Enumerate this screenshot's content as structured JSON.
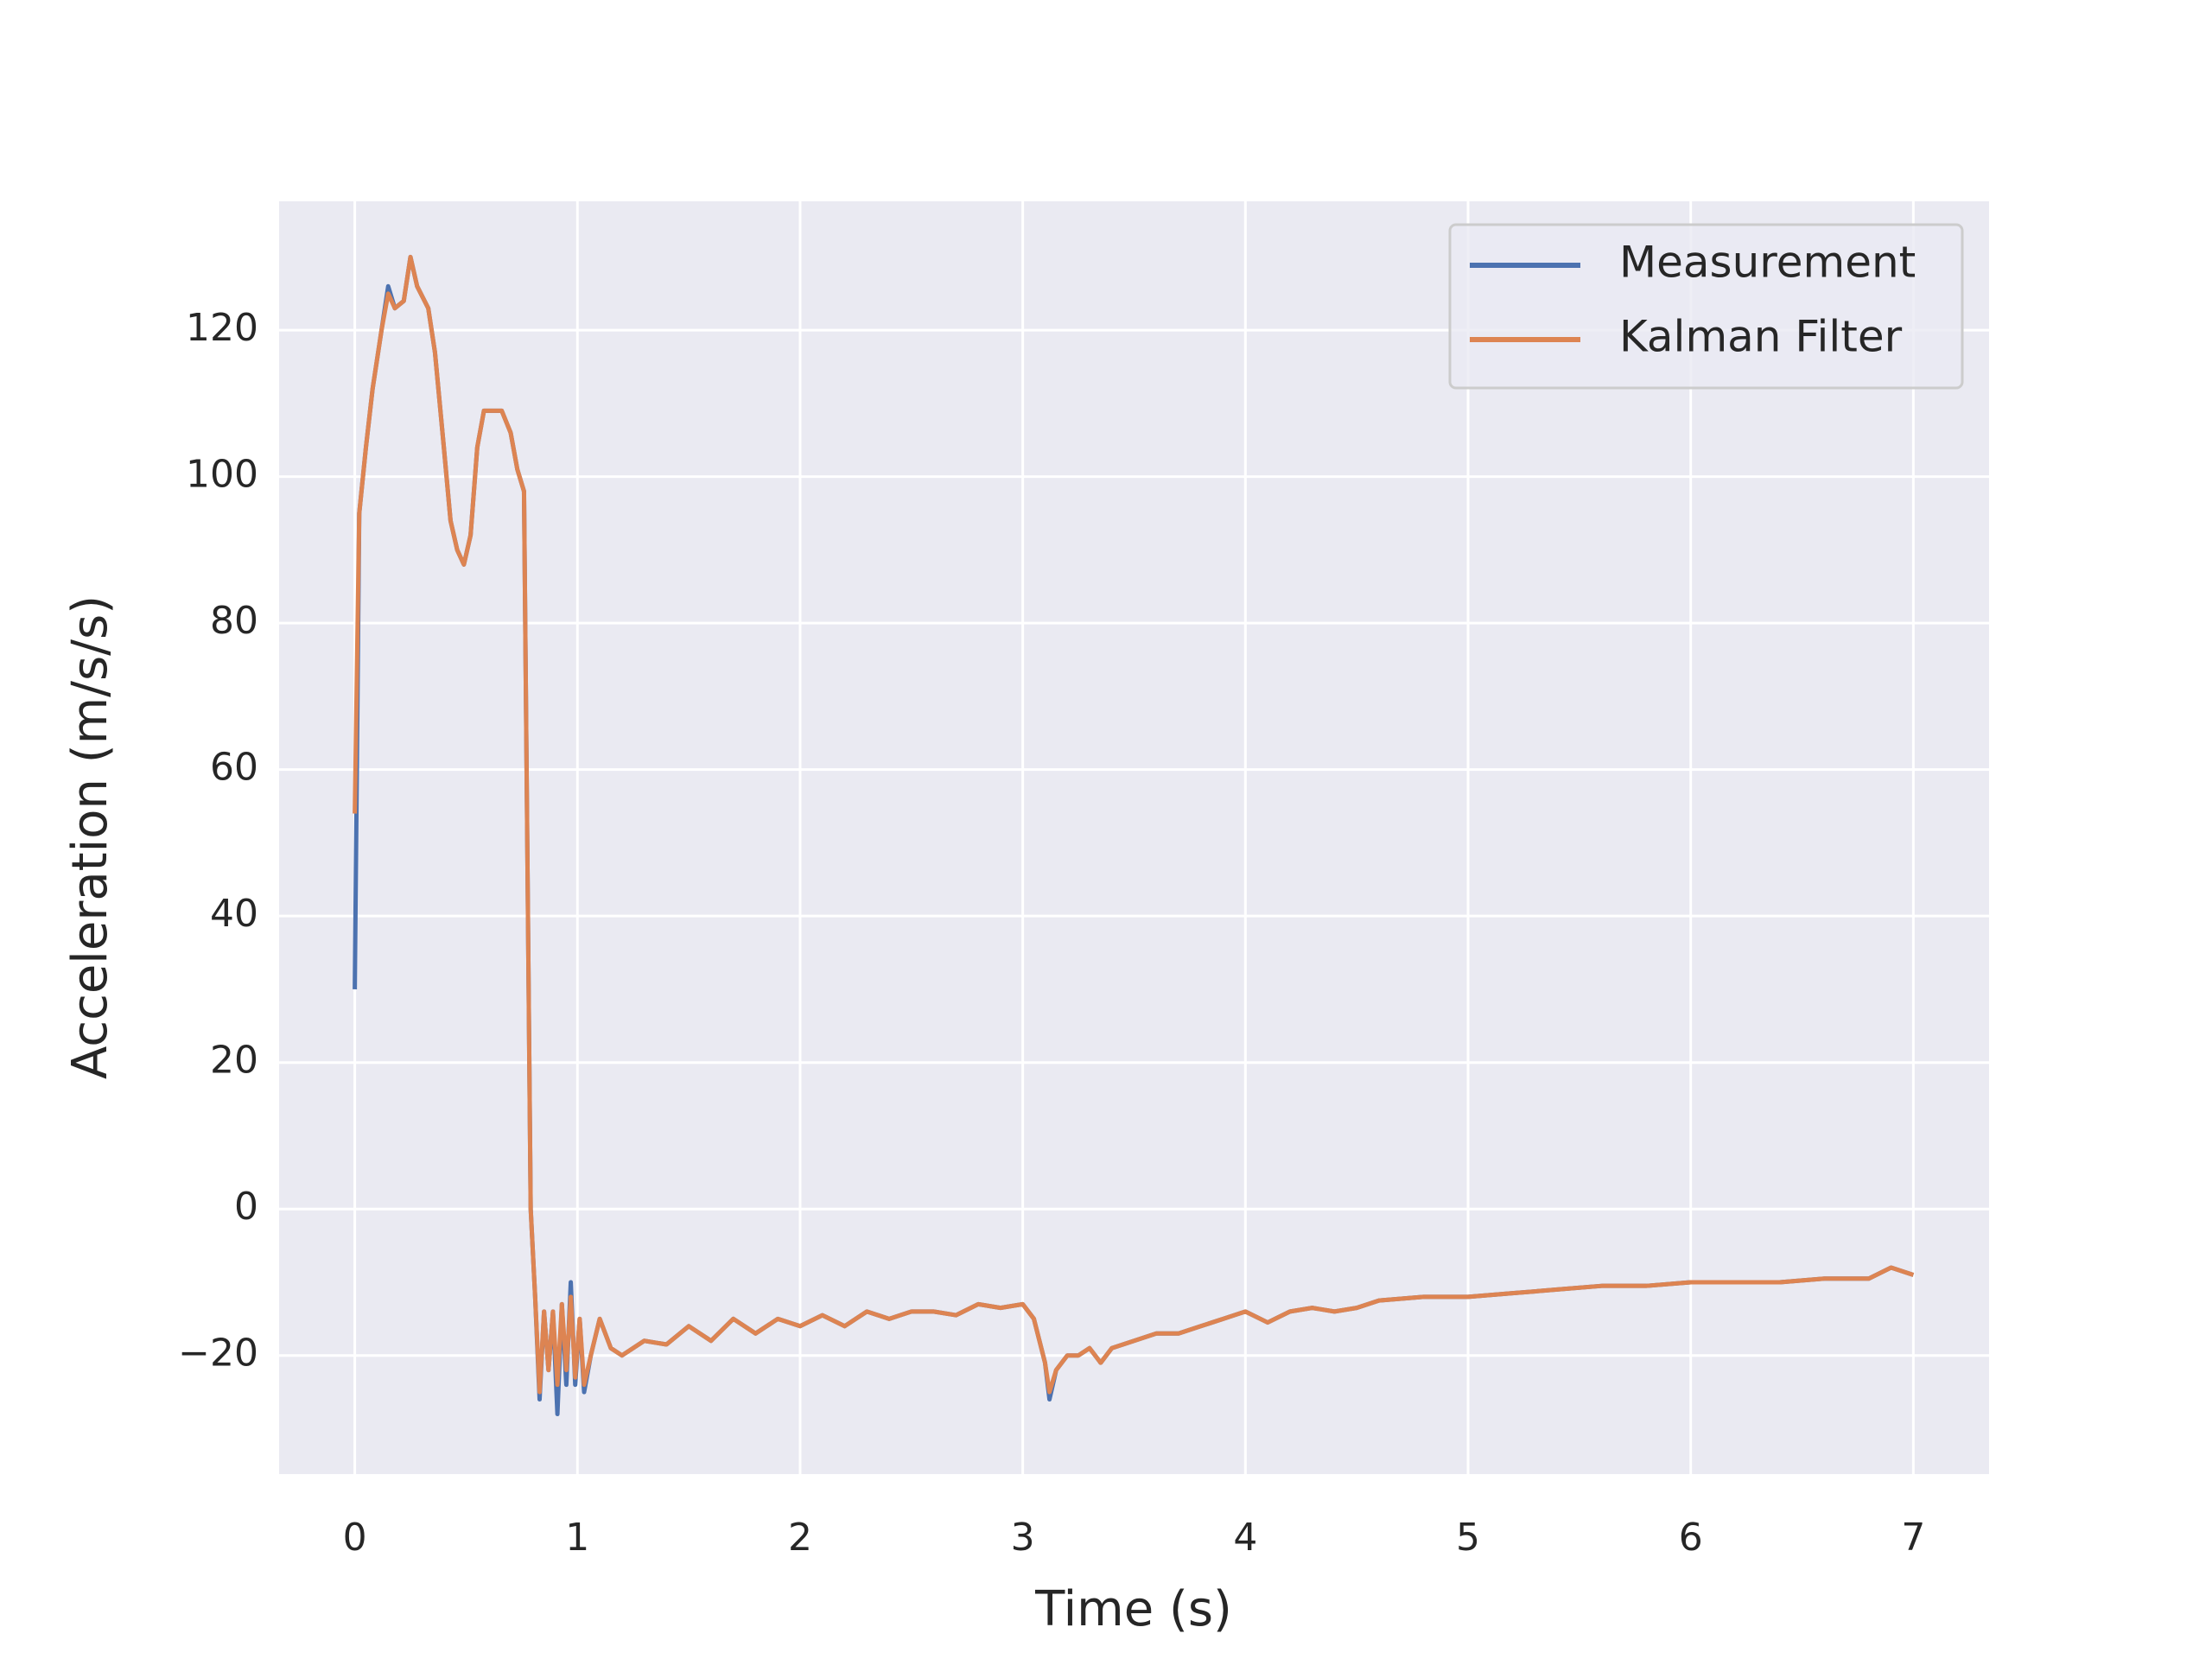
{
  "chart_data": {
    "type": "line",
    "xlabel": "Time (s)",
    "ylabel": "Acceleration (m/s/s)",
    "x": [
      0,
      0.02,
      0.05,
      0.08,
      0.12,
      0.15,
      0.18,
      0.22,
      0.25,
      0.28,
      0.33,
      0.36,
      0.4,
      0.43,
      0.46,
      0.49,
      0.52,
      0.55,
      0.58,
      0.62,
      0.66,
      0.7,
      0.73,
      0.76,
      0.79,
      0.81,
      0.83,
      0.85,
      0.87,
      0.89,
      0.91,
      0.93,
      0.95,
      0.97,
      0.99,
      1.01,
      1.03,
      1.06,
      1.1,
      1.15,
      1.2,
      1.3,
      1.4,
      1.5,
      1.6,
      1.7,
      1.8,
      1.9,
      2.0,
      2.1,
      2.2,
      2.3,
      2.4,
      2.5,
      2.6,
      2.7,
      2.8,
      2.9,
      3.0,
      3.05,
      3.1,
      3.12,
      3.15,
      3.2,
      3.25,
      3.3,
      3.35,
      3.4,
      3.5,
      3.6,
      3.7,
      3.8,
      3.9,
      4.0,
      4.1,
      4.2,
      4.3,
      4.4,
      4.5,
      4.6,
      4.8,
      5.0,
      5.2,
      5.4,
      5.6,
      5.8,
      6.0,
      6.2,
      6.4,
      6.6,
      6.8,
      6.9,
      7.0
    ],
    "series": [
      {
        "name": "Measurement",
        "color": "#4c72b0",
        "values": [
          30,
          95,
          104,
          112,
          120,
          126,
          123,
          124,
          130,
          126,
          123,
          117,
          104,
          94,
          90,
          88,
          92,
          104,
          109,
          109,
          109,
          106,
          101,
          98,
          0,
          -12,
          -26,
          -14,
          -22,
          -14,
          -28,
          -13,
          -24,
          -10,
          -24,
          -15,
          -25,
          -20,
          -15,
          -19,
          -20,
          -18,
          -18.5,
          -16,
          -18,
          -15,
          -17,
          -15,
          -16,
          -14.5,
          -16,
          -14,
          -15,
          -14,
          -14,
          -14.5,
          -13,
          -13.5,
          -13,
          -15,
          -21,
          -26,
          -22,
          -20,
          -20,
          -19,
          -21,
          -19,
          -18,
          -17,
          -17,
          -16,
          -15,
          -14,
          -15.5,
          -14,
          -13.5,
          -14,
          -13.5,
          -12.5,
          -12,
          -12,
          -11.5,
          -11,
          -10.5,
          -10.5,
          -10,
          -10,
          -10,
          -9.5,
          -9.5,
          -8,
          -9
        ]
      },
      {
        "name": "Kalman Filter",
        "color": "#dd8452",
        "values": [
          54,
          95,
          104,
          112,
          120,
          125,
          123,
          124,
          130,
          126,
          123,
          117,
          104,
          94,
          90,
          88,
          92,
          104,
          109,
          109,
          109,
          106,
          101,
          98,
          0,
          -12,
          -25,
          -14,
          -22,
          -14,
          -24,
          -13,
          -22,
          -12,
          -23,
          -15,
          -24,
          -20,
          -15,
          -19,
          -20,
          -18,
          -18.5,
          -16,
          -18,
          -15,
          -17,
          -15,
          -16,
          -14.5,
          -16,
          -14,
          -15,
          -14,
          -14,
          -14.5,
          -13,
          -13.5,
          -13,
          -15,
          -21,
          -25,
          -22,
          -20,
          -20,
          -19,
          -21,
          -19,
          -18,
          -17,
          -17,
          -16,
          -15,
          -14,
          -15.5,
          -14,
          -13.5,
          -14,
          -13.5,
          -12.5,
          -12,
          -12,
          -11.5,
          -11,
          -10.5,
          -10.5,
          -10,
          -10,
          -10,
          -9.5,
          -9.5,
          -8,
          -9
        ]
      }
    ],
    "xlim": [
      -0.34,
      7.34
    ],
    "ylim": [
      -36.2,
      137.6
    ],
    "xticks": [
      0,
      1,
      2,
      3,
      4,
      5,
      6,
      7
    ],
    "yticks": [
      {
        "value": -20,
        "label": "−20"
      },
      0,
      20,
      40,
      60,
      80,
      100,
      120
    ],
    "grid": true,
    "legend": "upper right"
  }
}
